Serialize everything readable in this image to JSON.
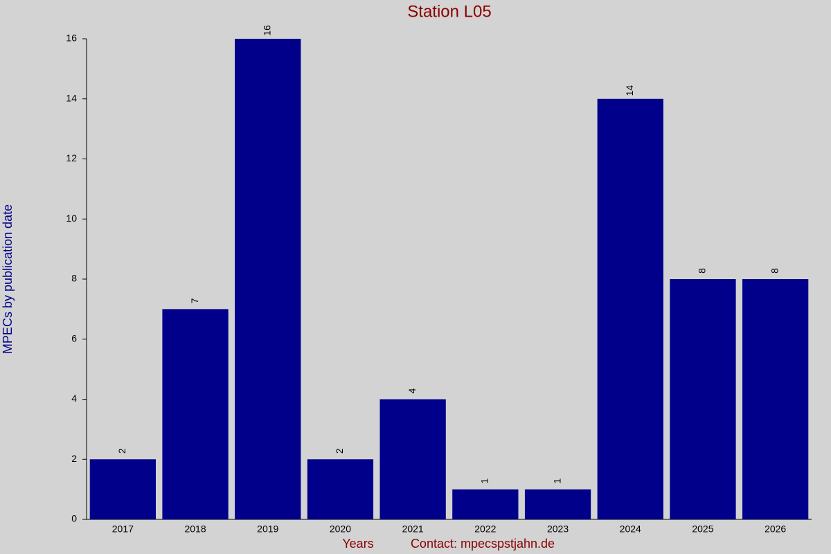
{
  "chart_data": {
    "type": "bar",
    "title": "Station L05",
    "y_label": "MPECs by publication date",
    "x_label": "Years",
    "contact": "Contact: mpecspstjahn.de",
    "categories": [
      "2017",
      "2018",
      "2019",
      "2020",
      "2021",
      "2022",
      "2023",
      "2024",
      "2025",
      "2026"
    ],
    "values": [
      2,
      7,
      16,
      2,
      4,
      1,
      1,
      14,
      8,
      8
    ],
    "color": "#00008b",
    "ylim": [
      0,
      16
    ],
    "yticks": [
      0,
      2,
      4,
      6,
      8,
      10,
      12,
      14,
      16
    ]
  }
}
